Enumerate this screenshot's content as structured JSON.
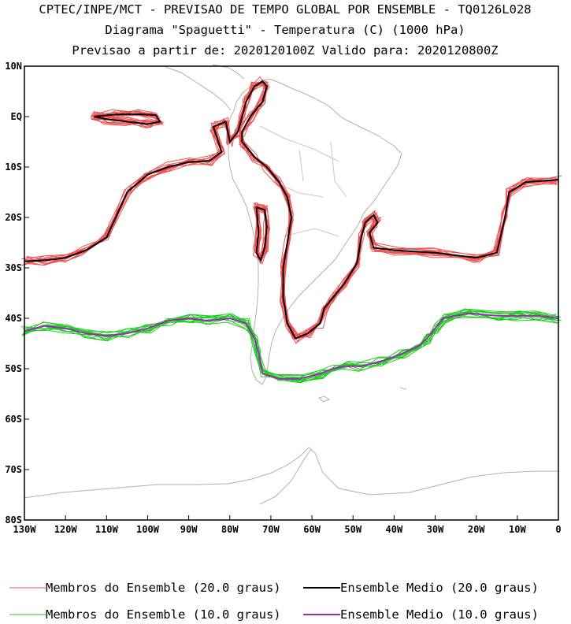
{
  "chart_data": {
    "type": "line",
    "title": "CPTEC/INPE/MCT - PREVISAO DE TEMPO GLOBAL POR ENSEMBLE - TQ0126L028",
    "subtitle": "Diagrama \"Spaguetti\" - Temperatura (C) (1000 hPa)",
    "subtitle2": "Previsao a partir de: 2020120100Z  Valido para: 2020120800Z",
    "x_ticks": [
      "130W",
      "120W",
      "110W",
      "100W",
      "90W",
      "80W",
      "70W",
      "60W",
      "50W",
      "40W",
      "30W",
      "20W",
      "10W",
      "0"
    ],
    "y_ticks": [
      "10N",
      "EQ",
      "10S",
      "20S",
      "30S",
      "40S",
      "50S",
      "60S",
      "70S",
      "80S"
    ],
    "xlim": [
      -130,
      0
    ],
    "ylim": [
      -80,
      10
    ],
    "grid": false,
    "series": [
      {
        "name": "Membros do Ensemble (20.0 graus)",
        "color": "#f05050",
        "role": "member",
        "points": [
          [
            -130,
            -28.7
          ],
          [
            -125,
            -28.5
          ],
          [
            -120,
            -28
          ],
          [
            -115,
            -26.5
          ],
          [
            -110,
            -24
          ],
          [
            -105,
            -15
          ],
          [
            -100,
            -11.5
          ],
          [
            -95,
            -10
          ],
          [
            -90,
            -9
          ],
          [
            -85,
            -8.8
          ],
          [
            -82,
            -7
          ],
          [
            -84,
            -2
          ],
          [
            -81,
            -1
          ],
          [
            -80,
            -5
          ],
          [
            -78,
            -3
          ],
          [
            -77,
            0
          ],
          [
            -76,
            3
          ],
          [
            -74,
            6
          ],
          [
            -72,
            7
          ],
          [
            -71,
            6
          ],
          [
            -72,
            3
          ],
          [
            -75,
            0
          ],
          [
            -77,
            -3
          ],
          [
            -77,
            -5
          ],
          [
            -74,
            -8
          ],
          [
            -71,
            -10
          ],
          [
            -68,
            -13
          ],
          [
            -66,
            -16
          ],
          [
            -65,
            -20
          ],
          [
            -66,
            -25
          ],
          [
            -67,
            -30
          ],
          [
            -67,
            -36
          ],
          [
            -66,
            -41
          ],
          [
            -64,
            -44
          ],
          [
            -61,
            -43
          ],
          [
            -58,
            -41
          ],
          [
            -57,
            -38
          ],
          [
            -55,
            -36
          ],
          [
            -52,
            -33
          ],
          [
            -49,
            -29
          ],
          [
            -48,
            -24
          ],
          [
            -47,
            -21
          ],
          [
            -45,
            -19.5
          ],
          [
            -44,
            -21
          ],
          [
            -46,
            -23
          ],
          [
            -45,
            -26
          ],
          [
            -40,
            -26.5
          ],
          [
            -30,
            -27
          ],
          [
            -20,
            -28
          ],
          [
            -15,
            -27
          ],
          [
            -13,
            -20
          ],
          [
            -12,
            -15
          ],
          [
            -8,
            -13
          ],
          [
            0,
            -12.5
          ]
        ]
      },
      {
        "name": "Ensemble Medio (20.0 graus)",
        "color": "#000000",
        "role": "mean",
        "points": [
          [
            -130,
            -28.7
          ],
          [
            -125,
            -28.5
          ],
          [
            -120,
            -28
          ],
          [
            -115,
            -26.5
          ],
          [
            -110,
            -24
          ],
          [
            -105,
            -15
          ],
          [
            -100,
            -11.5
          ],
          [
            -95,
            -10
          ],
          [
            -90,
            -9
          ],
          [
            -85,
            -8.8
          ],
          [
            -82,
            -7
          ],
          [
            -84,
            -2
          ],
          [
            -81,
            -1
          ],
          [
            -80,
            -5
          ],
          [
            -78,
            -3
          ],
          [
            -77,
            0
          ],
          [
            -76,
            3
          ],
          [
            -74,
            6
          ],
          [
            -72,
            7
          ],
          [
            -71,
            6
          ],
          [
            -72,
            3
          ],
          [
            -75,
            0
          ],
          [
            -77,
            -3
          ],
          [
            -77,
            -5
          ],
          [
            -74,
            -8
          ],
          [
            -71,
            -10
          ],
          [
            -68,
            -13
          ],
          [
            -66,
            -16
          ],
          [
            -65,
            -20
          ],
          [
            -66,
            -25
          ],
          [
            -67,
            -30
          ],
          [
            -67,
            -36
          ],
          [
            -66,
            -41
          ],
          [
            -64,
            -44
          ],
          [
            -61,
            -43
          ],
          [
            -58,
            -41
          ],
          [
            -57,
            -38
          ],
          [
            -55,
            -36
          ],
          [
            -52,
            -33
          ],
          [
            -49,
            -29
          ],
          [
            -48,
            -24
          ],
          [
            -47,
            -21
          ],
          [
            -45,
            -19.5
          ],
          [
            -44,
            -21
          ],
          [
            -46,
            -23
          ],
          [
            -45,
            -26
          ],
          [
            -40,
            -26.5
          ],
          [
            -30,
            -27
          ],
          [
            -20,
            -28
          ],
          [
            -15,
            -27
          ],
          [
            -13,
            -20
          ],
          [
            -12,
            -15
          ],
          [
            -8,
            -13
          ],
          [
            0,
            -12.5
          ]
        ]
      },
      {
        "name": "Membros do Ensemble (10.0 graus)",
        "color": "#22cc22",
        "role": "member",
        "points": [
          [
            -130,
            -42.5
          ],
          [
            -125,
            -41.5
          ],
          [
            -120,
            -42
          ],
          [
            -115,
            -43
          ],
          [
            -110,
            -43.5
          ],
          [
            -105,
            -43
          ],
          [
            -100,
            -42
          ],
          [
            -95,
            -40.5
          ],
          [
            -90,
            -40
          ],
          [
            -85,
            -40.5
          ],
          [
            -80,
            -40
          ],
          [
            -76,
            -41
          ],
          [
            -74,
            -44
          ],
          [
            -73,
            -47
          ],
          [
            -72,
            -51
          ],
          [
            -68,
            -52
          ],
          [
            -63,
            -52
          ],
          [
            -58,
            -51
          ],
          [
            -55,
            -50
          ],
          [
            -52,
            -49.5
          ],
          [
            -48,
            -49.5
          ],
          [
            -43,
            -48.5
          ],
          [
            -38,
            -47
          ],
          [
            -34,
            -45.5
          ],
          [
            -32,
            -44
          ],
          [
            -30,
            -42
          ],
          [
            -28,
            -40
          ],
          [
            -22,
            -39
          ],
          [
            -15,
            -39.5
          ],
          [
            -10,
            -39.5
          ],
          [
            -5,
            -39.5
          ],
          [
            0,
            -40
          ]
        ]
      },
      {
        "name": "Ensemble Medio (10.0 graus)",
        "color": "#9a2bb5",
        "role": "mean",
        "points": [
          [
            -130,
            -42.5
          ],
          [
            -125,
            -41.5
          ],
          [
            -120,
            -42
          ],
          [
            -115,
            -43
          ],
          [
            -110,
            -43.5
          ],
          [
            -105,
            -43
          ],
          [
            -100,
            -42
          ],
          [
            -95,
            -40.5
          ],
          [
            -90,
            -40
          ],
          [
            -85,
            -40.5
          ],
          [
            -80,
            -40
          ],
          [
            -76,
            -41
          ],
          [
            -74,
            -44
          ],
          [
            -73,
            -47
          ],
          [
            -72,
            -51
          ],
          [
            -68,
            -52
          ],
          [
            -63,
            -52
          ],
          [
            -58,
            -51
          ],
          [
            -55,
            -50
          ],
          [
            -52,
            -49.5
          ],
          [
            -48,
            -49.5
          ],
          [
            -43,
            -48.5
          ],
          [
            -38,
            -47
          ],
          [
            -34,
            -45.5
          ],
          [
            -32,
            -44
          ],
          [
            -30,
            -42
          ],
          [
            -28,
            -40
          ],
          [
            -22,
            -39
          ],
          [
            -15,
            -39.5
          ],
          [
            -10,
            -39.5
          ],
          [
            -5,
            -39.5
          ],
          [
            0,
            -40
          ]
        ]
      }
    ],
    "isolated_contours": [
      {
        "name": "Membros do Ensemble (20.0 graus)",
        "color": "#f05050",
        "points": [
          [
            -113,
            0
          ],
          [
            -108,
            0.4
          ],
          [
            -103,
            0.5
          ],
          [
            -98,
            0.3
          ],
          [
            -97,
            -1
          ],
          [
            -100,
            -1.5
          ],
          [
            -105,
            -1
          ],
          [
            -110,
            -0.5
          ],
          [
            -113,
            0
          ]
        ]
      },
      {
        "name": "Ensemble Medio (20.0 graus)",
        "color": "#000000",
        "points": [
          [
            -113,
            0
          ],
          [
            -108,
            0.4
          ],
          [
            -103,
            0.5
          ],
          [
            -98,
            0.3
          ],
          [
            -97,
            -1
          ],
          [
            -100,
            -1.5
          ],
          [
            -105,
            -1
          ],
          [
            -110,
            -0.5
          ],
          [
            -113,
            0
          ]
        ]
      },
      {
        "name": "Membros do Ensemble (20.0 graus)",
        "color": "#f05050",
        "points": [
          [
            -73.5,
            -18
          ],
          [
            -71.5,
            -18.5
          ],
          [
            -71,
            -22
          ],
          [
            -71.5,
            -26
          ],
          [
            -72.5,
            -28.5
          ],
          [
            -73.5,
            -27
          ],
          [
            -73,
            -23
          ],
          [
            -73.5,
            -18
          ]
        ]
      },
      {
        "name": "Ensemble Medio (20.0 graus)",
        "color": "#000000",
        "points": [
          [
            -73.5,
            -18
          ],
          [
            -71.5,
            -18.5
          ],
          [
            -71,
            -22
          ],
          [
            -71.5,
            -26
          ],
          [
            -72.5,
            -28.5
          ],
          [
            -73.5,
            -27
          ],
          [
            -73,
            -23
          ],
          [
            -73.5,
            -18
          ]
        ]
      }
    ],
    "legend": [
      {
        "label": "Membros do Ensemble (20.0 graus)",
        "color": "#f05050"
      },
      {
        "label": "Ensemble Medio (20.0 graus)",
        "color": "#000000"
      },
      {
        "label": "Membros do Ensemble (10.0 graus)",
        "color": "#22cc22"
      },
      {
        "label": "Ensemble Medio (10.0 graus)",
        "color": "#9a2bb5"
      }
    ]
  }
}
